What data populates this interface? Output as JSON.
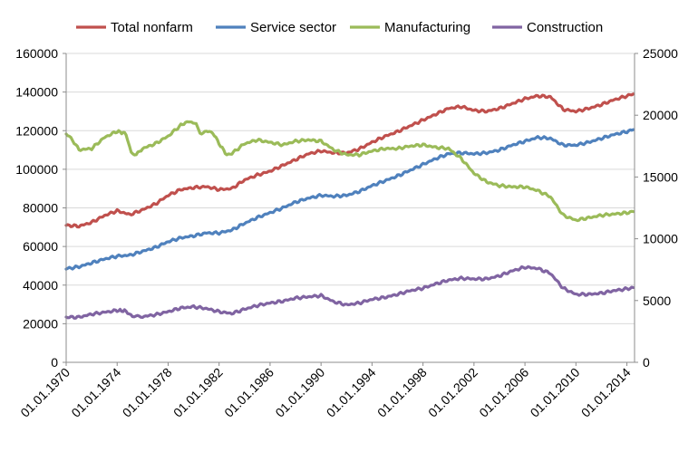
{
  "chart_data": {
    "type": "line",
    "title": "",
    "xlabel": "",
    "ylabel": "",
    "y2label": "",
    "x_tick_labels": [
      "01.01.1970",
      "01.01.1974",
      "01.01.1978",
      "01.01.1982",
      "01.01.1986",
      "01.01.1990",
      "01.01.1994",
      "01.01.1998",
      "01.01.2002",
      "01.01.2006",
      "01.01.2010",
      "01.01.2014"
    ],
    "xlim": [
      1970,
      2014.6
    ],
    "ylim": [
      0,
      160000
    ],
    "y_ticks": [
      "0",
      "20000",
      "40000",
      "60000",
      "80000",
      "100000",
      "120000",
      "140000",
      "160000"
    ],
    "y2lim": [
      0,
      25000
    ],
    "y2_ticks": [
      "0",
      "5000",
      "10000",
      "15000",
      "20000",
      "25000"
    ],
    "legend_position": "top",
    "series": [
      {
        "name": "Total nonfarm",
        "color": "#C0504D",
        "axis": "left",
        "points": [
          [
            1970,
            71000
          ],
          [
            1971,
            70500
          ],
          [
            1972,
            72500
          ],
          [
            1973,
            76000
          ],
          [
            1974,
            78500
          ],
          [
            1975,
            76500
          ],
          [
            1976,
            79000
          ],
          [
            1977,
            82000
          ],
          [
            1978,
            86500
          ],
          [
            1979,
            89500
          ],
          [
            1980,
            90500
          ],
          [
            1981,
            91000
          ],
          [
            1982,
            89500
          ],
          [
            1983,
            90000
          ],
          [
            1984,
            94500
          ],
          [
            1985,
            97000
          ],
          [
            1986,
            99000
          ],
          [
            1987,
            102000
          ],
          [
            1988,
            105000
          ],
          [
            1989,
            108000
          ],
          [
            1990,
            109500
          ],
          [
            1991,
            108500
          ],
          [
            1992,
            108500
          ],
          [
            1993,
            110500
          ],
          [
            1994,
            114000
          ],
          [
            1995,
            117000
          ],
          [
            1996,
            119500
          ],
          [
            1997,
            122500
          ],
          [
            1998,
            125500
          ],
          [
            1999,
            128500
          ],
          [
            2000,
            131500
          ],
          [
            2001,
            132500
          ],
          [
            2002,
            130500
          ],
          [
            2003,
            130000
          ],
          [
            2004,
            131500
          ],
          [
            2005,
            134000
          ],
          [
            2006,
            136500
          ],
          [
            2007,
            138000
          ],
          [
            2008,
            137500
          ],
          [
            2009,
            131000
          ],
          [
            2010,
            130000
          ],
          [
            2011,
            131500
          ],
          [
            2012,
            133500
          ],
          [
            2013,
            136000
          ],
          [
            2014,
            138000
          ],
          [
            2014.5,
            139000
          ]
        ]
      },
      {
        "name": "Service sector",
        "color": "#4F81BD",
        "axis": "left",
        "points": [
          [
            1970,
            48500
          ],
          [
            1971,
            49500
          ],
          [
            1972,
            51500
          ],
          [
            1973,
            53500
          ],
          [
            1974,
            55000
          ],
          [
            1975,
            55500
          ],
          [
            1976,
            57500
          ],
          [
            1977,
            59500
          ],
          [
            1978,
            62500
          ],
          [
            1979,
            64500
          ],
          [
            1980,
            65500
          ],
          [
            1981,
            67000
          ],
          [
            1982,
            67000
          ],
          [
            1983,
            68500
          ],
          [
            1984,
            72000
          ],
          [
            1985,
            75000
          ],
          [
            1986,
            77500
          ],
          [
            1987,
            80000
          ],
          [
            1988,
            83000
          ],
          [
            1989,
            85000
          ],
          [
            1990,
            86500
          ],
          [
            1991,
            86000
          ],
          [
            1992,
            86500
          ],
          [
            1993,
            88500
          ],
          [
            1994,
            91500
          ],
          [
            1995,
            94000
          ],
          [
            1996,
            96500
          ],
          [
            1997,
            99500
          ],
          [
            1998,
            102500
          ],
          [
            1999,
            105500
          ],
          [
            2000,
            108000
          ],
          [
            2001,
            108500
          ],
          [
            2002,
            108000
          ],
          [
            2003,
            108500
          ],
          [
            2004,
            110000
          ],
          [
            2005,
            112500
          ],
          [
            2006,
            114500
          ],
          [
            2007,
            116500
          ],
          [
            2008,
            116000
          ],
          [
            2009,
            112500
          ],
          [
            2010,
            112500
          ],
          [
            2011,
            114000
          ],
          [
            2012,
            116000
          ],
          [
            2013,
            118000
          ],
          [
            2014,
            119500
          ],
          [
            2014.5,
            120500
          ]
        ]
      },
      {
        "name": "Manufacturing",
        "color": "#9BBB59",
        "axis": "right",
        "points": [
          [
            1970,
            18500
          ],
          [
            1970.5,
            18000
          ],
          [
            1971,
            17200
          ],
          [
            1972,
            17300
          ],
          [
            1973,
            18200
          ],
          [
            1974,
            18700
          ],
          [
            1974.7,
            18500
          ],
          [
            1975.1,
            17000
          ],
          [
            1975.5,
            16800
          ],
          [
            1976,
            17300
          ],
          [
            1977,
            17700
          ],
          [
            1978,
            18300
          ],
          [
            1979,
            19200
          ],
          [
            1979.6,
            19500
          ],
          [
            1980.2,
            19300
          ],
          [
            1980.5,
            18500
          ],
          [
            1981,
            18700
          ],
          [
            1981.5,
            18600
          ],
          [
            1982,
            17700
          ],
          [
            1982.6,
            16800
          ],
          [
            1983,
            16900
          ],
          [
            1984,
            17700
          ],
          [
            1985,
            18000
          ],
          [
            1986,
            17800
          ],
          [
            1987,
            17600
          ],
          [
            1988,
            17900
          ],
          [
            1989,
            18000
          ],
          [
            1990,
            17900
          ],
          [
            1991,
            17200
          ],
          [
            1992,
            16800
          ],
          [
            1993,
            16800
          ],
          [
            1994,
            17100
          ],
          [
            1995,
            17300
          ],
          [
            1996,
            17300
          ],
          [
            1997,
            17500
          ],
          [
            1998,
            17600
          ],
          [
            1999,
            17400
          ],
          [
            2000,
            17300
          ],
          [
            2001,
            16500
          ],
          [
            2002,
            15300
          ],
          [
            2003,
            14600
          ],
          [
            2004,
            14300
          ],
          [
            2005,
            14200
          ],
          [
            2006,
            14200
          ],
          [
            2007,
            13900
          ],
          [
            2008,
            13400
          ],
          [
            2009,
            11900
          ],
          [
            2010,
            11500
          ],
          [
            2011,
            11700
          ],
          [
            2012,
            11900
          ],
          [
            2013,
            12000
          ],
          [
            2014,
            12100
          ],
          [
            2014.5,
            12200
          ]
        ]
      },
      {
        "name": "Construction",
        "color": "#8064A2",
        "axis": "right",
        "points": [
          [
            1970,
            3650
          ],
          [
            1971,
            3650
          ],
          [
            1972,
            3900
          ],
          [
            1973,
            4050
          ],
          [
            1974,
            4200
          ],
          [
            1974.7,
            4150
          ],
          [
            1975.2,
            3700
          ],
          [
            1976,
            3700
          ],
          [
            1977,
            3850
          ],
          [
            1978,
            4100
          ],
          [
            1979,
            4400
          ],
          [
            1980,
            4500
          ],
          [
            1981,
            4350
          ],
          [
            1982,
            4100
          ],
          [
            1983,
            3950
          ],
          [
            1984,
            4300
          ],
          [
            1985,
            4600
          ],
          [
            1986,
            4800
          ],
          [
            1987,
            4950
          ],
          [
            1988,
            5200
          ],
          [
            1989,
            5300
          ],
          [
            1990,
            5400
          ],
          [
            1991,
            4900
          ],
          [
            1992,
            4650
          ],
          [
            1993,
            4800
          ],
          [
            1994,
            5100
          ],
          [
            1995,
            5250
          ],
          [
            1996,
            5500
          ],
          [
            1997,
            5800
          ],
          [
            1998,
            6000
          ],
          [
            1999,
            6350
          ],
          [
            2000,
            6650
          ],
          [
            2001,
            6800
          ],
          [
            2002,
            6750
          ],
          [
            2003,
            6750
          ],
          [
            2004,
            7000
          ],
          [
            2005,
            7400
          ],
          [
            2006,
            7700
          ],
          [
            2007,
            7600
          ],
          [
            2008,
            7200
          ],
          [
            2009,
            6000
          ],
          [
            2010,
            5500
          ],
          [
            2011,
            5500
          ],
          [
            2012,
            5600
          ],
          [
            2013,
            5800
          ],
          [
            2014,
            5950
          ],
          [
            2014.5,
            6050
          ]
        ]
      }
    ]
  }
}
